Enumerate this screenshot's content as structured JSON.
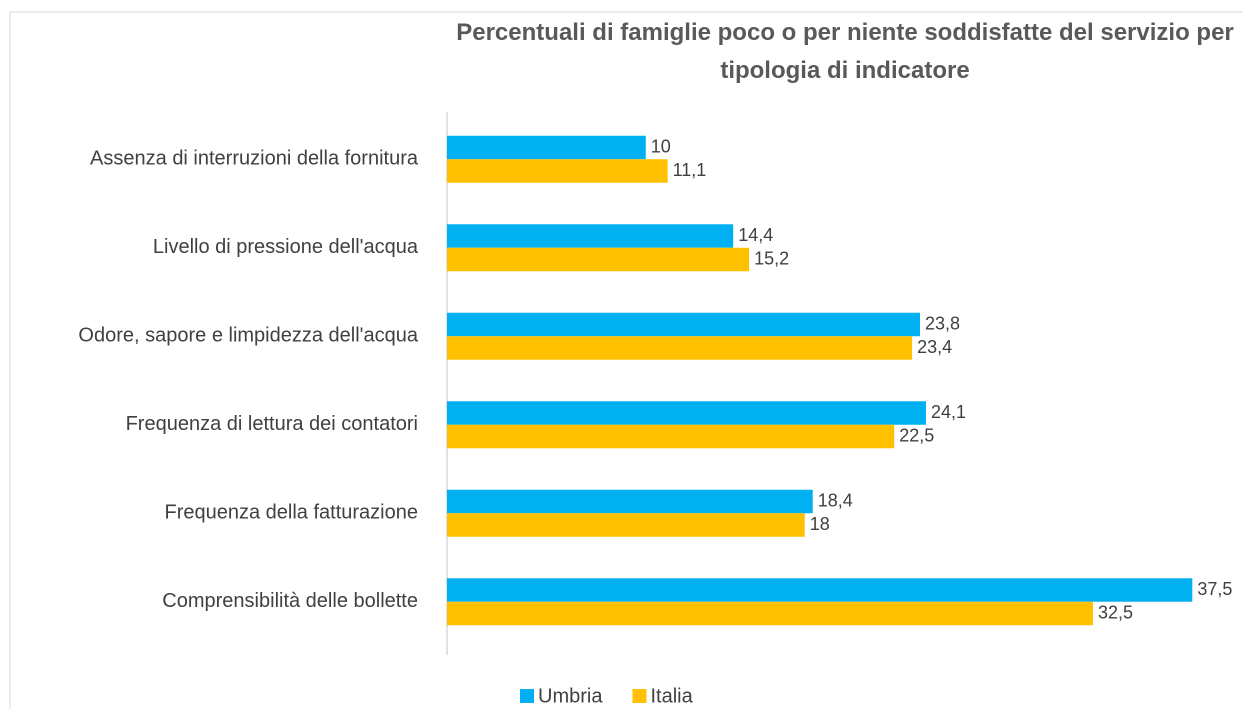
{
  "chart_data": {
    "type": "bar",
    "orientation": "horizontal",
    "title": "Percentuali di famiglie poco o per niente soddisfatte del servizio per tipologia di indicatore",
    "categories": [
      "Assenza di interruzioni della fornitura",
      "Livello di pressione dell'acqua",
      "Odore, sapore e limpidezza dell'acqua",
      "Frequenza di lettura dei contatori",
      "Frequenza della fatturazione",
      "Comprensibilità delle bollette"
    ],
    "series": [
      {
        "name": "Umbria",
        "color": "#00b0f0",
        "values": [
          10,
          14.4,
          23.8,
          24.1,
          18.4,
          37.5
        ],
        "value_labels": [
          "10",
          "14,4",
          "23,8",
          "24,1",
          "18,4",
          "37,5"
        ]
      },
      {
        "name": "Italia",
        "color": "#ffc000",
        "values": [
          11.1,
          15.2,
          23.4,
          22.5,
          18,
          32.5
        ],
        "value_labels": [
          "11,1",
          "15,2",
          "23,4",
          "22,5",
          "18",
          "32,5"
        ]
      }
    ],
    "xlim": [
      0,
      40
    ],
    "legend": "bottom"
  }
}
